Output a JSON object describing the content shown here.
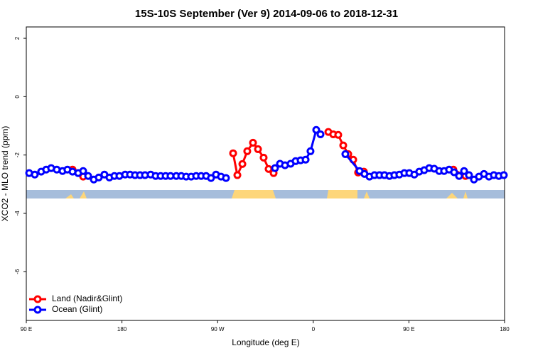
{
  "chart_data": {
    "type": "line",
    "title": "15S-10S September (Ver 9)   2014-09-06 to 2018-12-31",
    "x_label": "Longitude (deg E)",
    "y_label": "XCO2 - MLO trend (ppm)",
    "xlim": [
      90,
      540
    ],
    "ylim": [
      -7.67,
      2.39
    ],
    "xticks": [
      {
        "value": 90,
        "label": "90 E"
      },
      180,
      {
        "value": 270,
        "label": "90 W"
      },
      {
        "value": 360,
        "label": "0"
      },
      {
        "value": 450,
        "label": "90 E"
      },
      {
        "value": 540,
        "label": "180"
      }
    ],
    "yticks": [
      2,
      0,
      -2,
      -4,
      -6
    ],
    "legend": "bottom-left",
    "series": [
      {
        "name": "Land (Nadir&Glint)",
        "color": "#ff0000",
        "x": [
          133.5,
          143.5,
          null,
          284.6,
          288.6,
          293.3,
          297.9,
          303.3,
          308.0,
          313.3,
          318.0,
          322.7,
          null,
          374.2,
          378.8,
          383.5,
          388.2,
          392.9,
          397.6,
          402.2,
          407.6,
          null,
          491.8,
          503.2
        ],
        "values": [
          -2.5,
          -2.74,
          null,
          -1.94,
          -2.69,
          -2.31,
          -1.87,
          -1.58,
          -1.8,
          -2.09,
          -2.48,
          -2.62,
          null,
          -1.21,
          -1.29,
          -1.31,
          -1.67,
          -1.97,
          -2.16,
          -2.6,
          -2.57,
          null,
          -2.5,
          -2.72
        ]
      },
      {
        "name": "Ocean (Glint)",
        "color": "#0000ff",
        "x": [
          92.7,
          98.0,
          104.0,
          108.7,
          113.4,
          118.7,
          124.1,
          128.7,
          133.5,
          138.8,
          143.5,
          148.2,
          153.5,
          158.2,
          163.5,
          168.2,
          172.9,
          177.6,
          183.0,
          187.6,
          192.3,
          197.0,
          201.7,
          207.0,
          211.7,
          216.4,
          221.1,
          225.7,
          231.1,
          235.8,
          240.4,
          245.1,
          249.8,
          254.5,
          259.2,
          263.8,
          268.5,
          273.2,
          277.9,
          null,
          324.0,
          328.7,
          333.4,
          338.7,
          343.4,
          348.1,
          352.8,
          357.4,
          362.8,
          366.8,
          null,
          390.2,
          403.6,
          408.2,
          412.9,
          417.6,
          422.3,
          427.0,
          431.7,
          436.3,
          441.0,
          445.7,
          450.4,
          455.1,
          459.7,
          464.4,
          469.1,
          473.8,
          478.5,
          483.1,
          487.8,
          492.5,
          497.2,
          501.9,
          506.5,
          511.2,
          515.9,
          520.6,
          525.3,
          529.9,
          534.6,
          539.3
        ],
        "values": [
          -2.62,
          -2.67,
          -2.57,
          -2.5,
          -2.45,
          -2.5,
          -2.55,
          -2.5,
          -2.57,
          -2.62,
          -2.55,
          -2.72,
          -2.84,
          -2.77,
          -2.67,
          -2.77,
          -2.72,
          -2.72,
          -2.67,
          -2.67,
          -2.69,
          -2.69,
          -2.69,
          -2.67,
          -2.72,
          -2.72,
          -2.72,
          -2.72,
          -2.72,
          -2.72,
          -2.74,
          -2.74,
          -2.72,
          -2.72,
          -2.72,
          -2.79,
          -2.67,
          -2.74,
          -2.79,
          null,
          -2.45,
          -2.3,
          -2.35,
          -2.3,
          -2.21,
          -2.18,
          -2.16,
          -1.87,
          -1.14,
          -1.29,
          null,
          -1.97,
          -2.55,
          -2.65,
          -2.74,
          -2.69,
          -2.69,
          -2.69,
          -2.72,
          -2.69,
          -2.67,
          -2.62,
          -2.62,
          -2.67,
          -2.57,
          -2.52,
          -2.45,
          -2.47,
          -2.55,
          -2.55,
          -2.5,
          -2.59,
          -2.72,
          -2.55,
          -2.69,
          -2.84,
          -2.74,
          -2.65,
          -2.74,
          -2.69,
          -2.72,
          -2.69
        ]
      }
    ]
  }
}
